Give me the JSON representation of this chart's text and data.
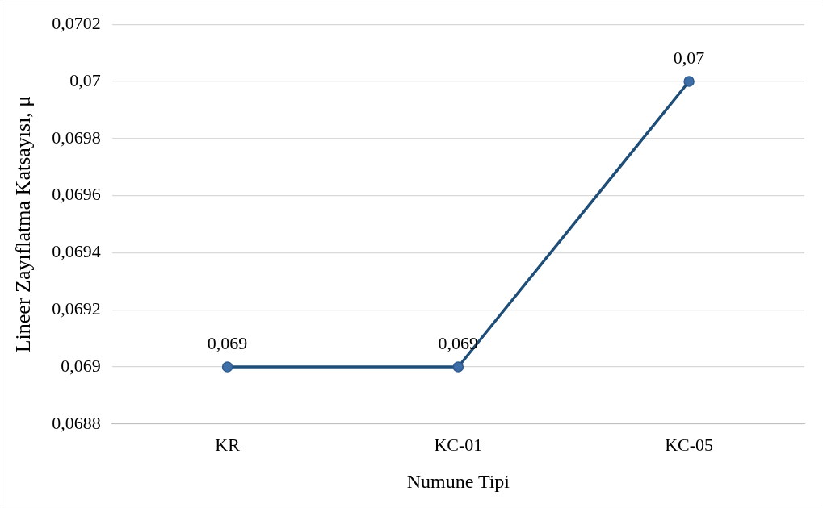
{
  "chart_data": {
    "type": "line",
    "xlabel": "Numune Tipi",
    "ylabel": "Lineer Zayıflatma Katsayısı, μ",
    "categories": [
      "KR",
      "KC-01",
      "KC-05"
    ],
    "series": [
      {
        "color": "#1f4e79",
        "values": [
          0.069,
          0.069,
          0.07
        ],
        "value_labels": [
          "0,069",
          "0,069",
          "0,07"
        ]
      }
    ],
    "ylim": [
      0.0688,
      0.0702
    ],
    "yticks": [
      {
        "value": 0.0688,
        "label": "0,0688"
      },
      {
        "value": 0.069,
        "label": "0,069"
      },
      {
        "value": 0.0692,
        "label": "0,0692"
      },
      {
        "value": 0.0694,
        "label": "0,0694"
      },
      {
        "value": 0.0696,
        "label": "0,0696"
      },
      {
        "value": 0.0698,
        "label": "0,0698"
      },
      {
        "value": 0.07,
        "label": "0,07"
      },
      {
        "value": 0.0702,
        "label": "0,0702"
      }
    ],
    "grid": "y",
    "legend": false,
    "marker": "circle",
    "line_style": "solid"
  }
}
